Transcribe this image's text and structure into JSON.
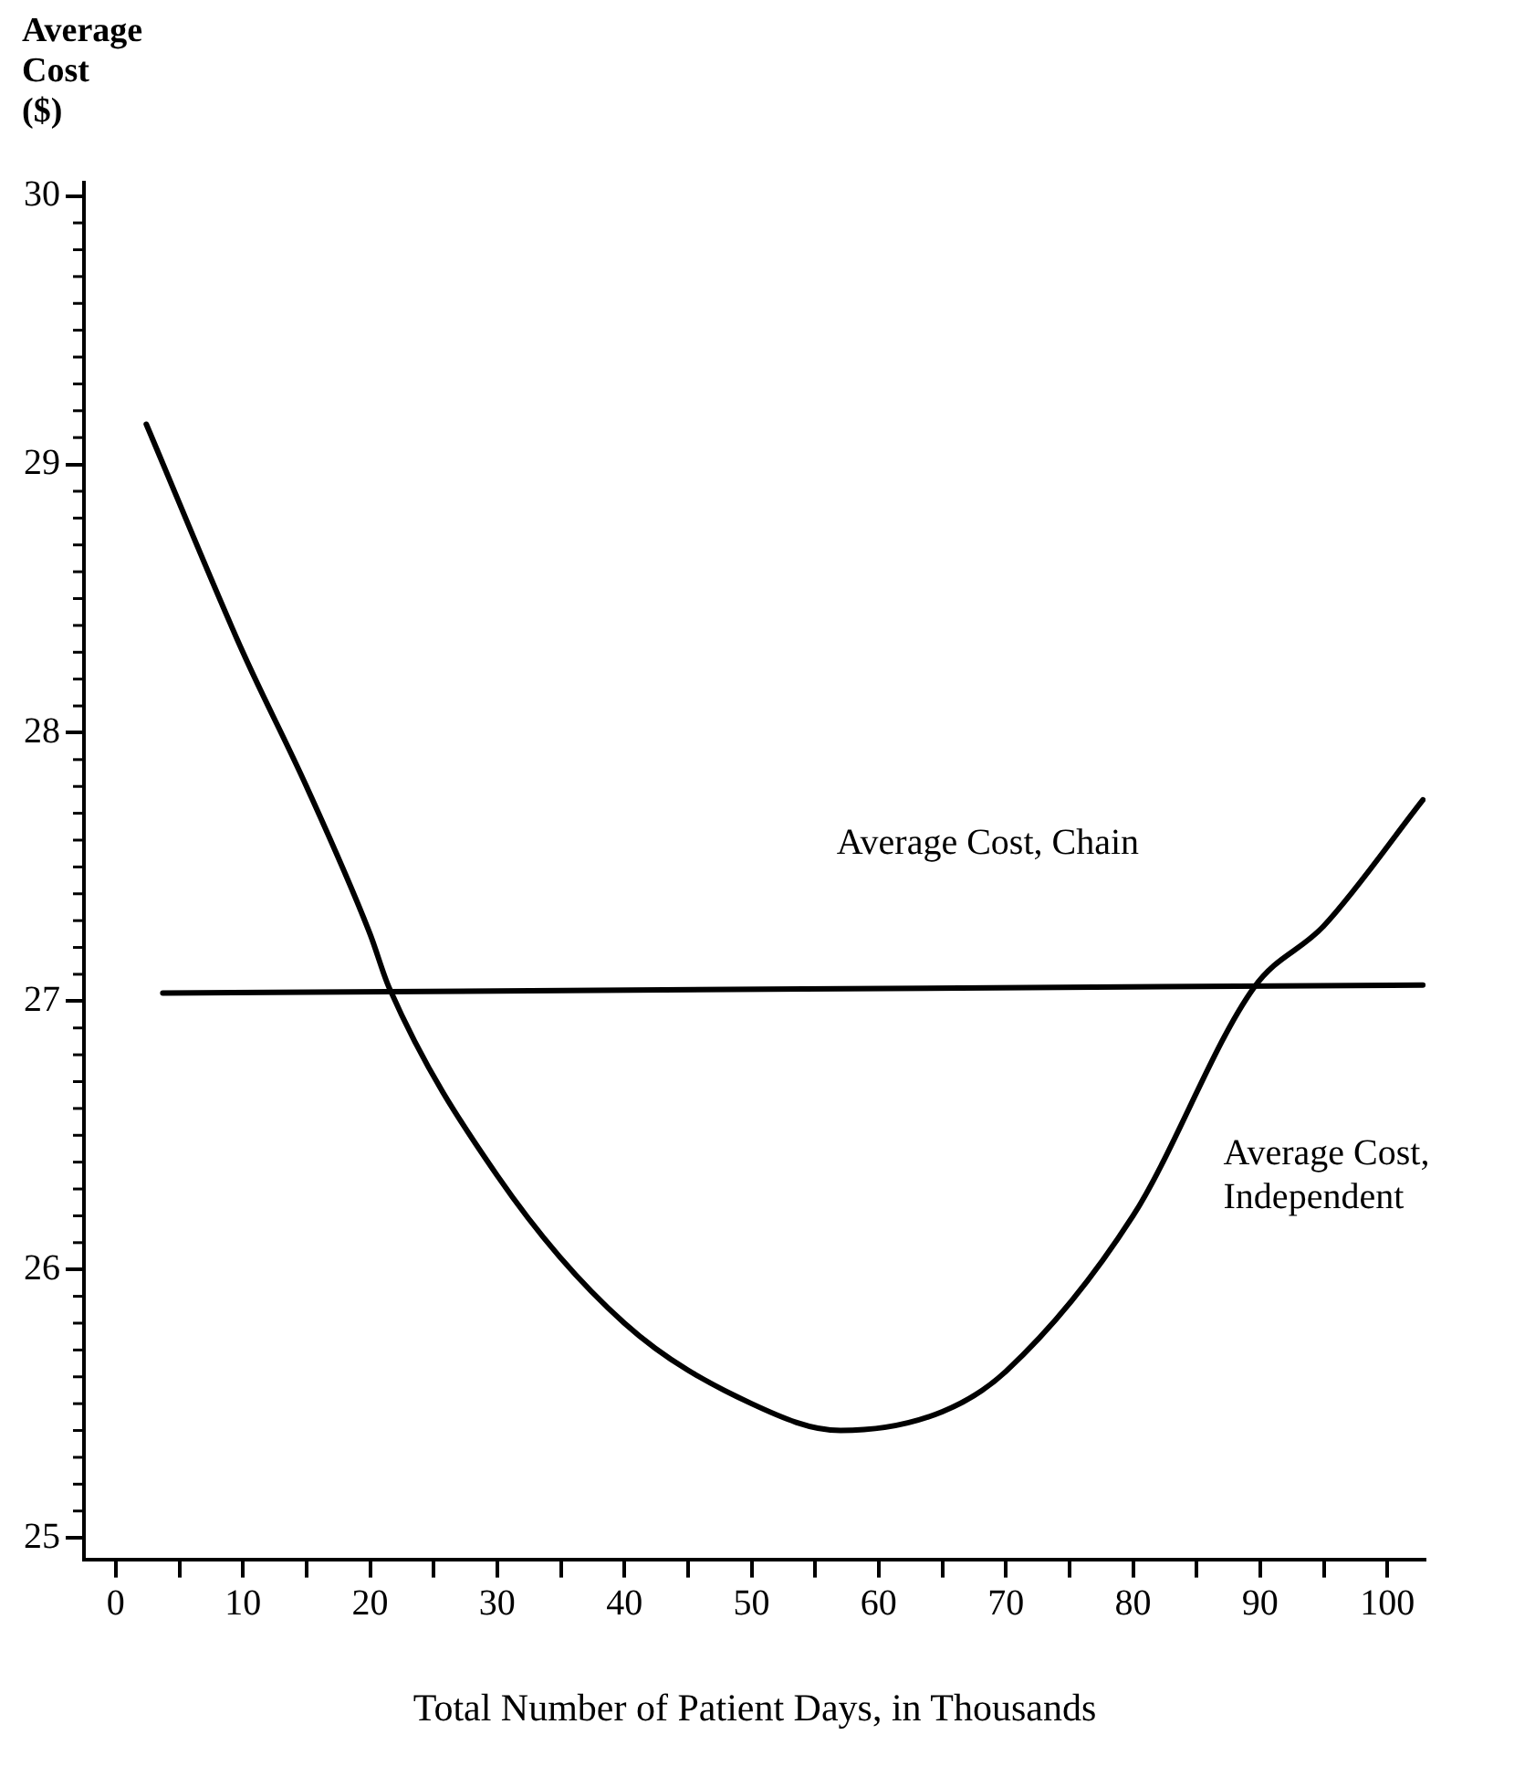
{
  "chart_data": {
    "type": "line",
    "xlabel": "Total Number of Patient Days, in Thousands",
    "ylabel": "Average Cost\n($)",
    "xlim": [
      -2.5,
      103
    ],
    "xticks": [
      0,
      {
        "value": 5,
        "label": null
      },
      10,
      {
        "value": 15,
        "label": null
      },
      20,
      {
        "value": 25,
        "label": null
      },
      30,
      {
        "value": 35,
        "label": null
      },
      40,
      {
        "value": 45,
        "label": null
      },
      50,
      {
        "value": 55,
        "label": null
      },
      60,
      {
        "value": 65,
        "label": null
      },
      70,
      {
        "value": 75,
        "label": null
      },
      80,
      {
        "value": 85,
        "label": null
      },
      90,
      {
        "value": 95,
        "label": null
      },
      100
    ],
    "ylim": [
      24.92,
      30.05
    ],
    "yticks": [
      25,
      26,
      27,
      28,
      29,
      30
    ],
    "grid": false,
    "legend": false,
    "marker": "none",
    "line_style": "solid",
    "series": [
      {
        "color": "#000000",
        "x": [
          2.4,
          10,
          15,
          20,
          21.5,
          30,
          40,
          50,
          57,
          65,
          70,
          80,
          89.5,
          95,
          102.8
        ],
        "values": [
          29.15,
          28.3,
          27.8,
          27.25,
          27.05,
          26.35,
          25.8,
          25.5,
          25.4,
          25.47,
          25.62,
          26.2,
          27.05,
          27.28,
          27.75
        ]
      },
      {
        "color": "#000000",
        "x": [
          3.7,
          102.8
        ],
        "values": [
          27.03,
          27.06
        ]
      }
    ],
    "annotations": [
      "Average Cost, Chain",
      "Average Cost,\nIndependent"
    ]
  }
}
